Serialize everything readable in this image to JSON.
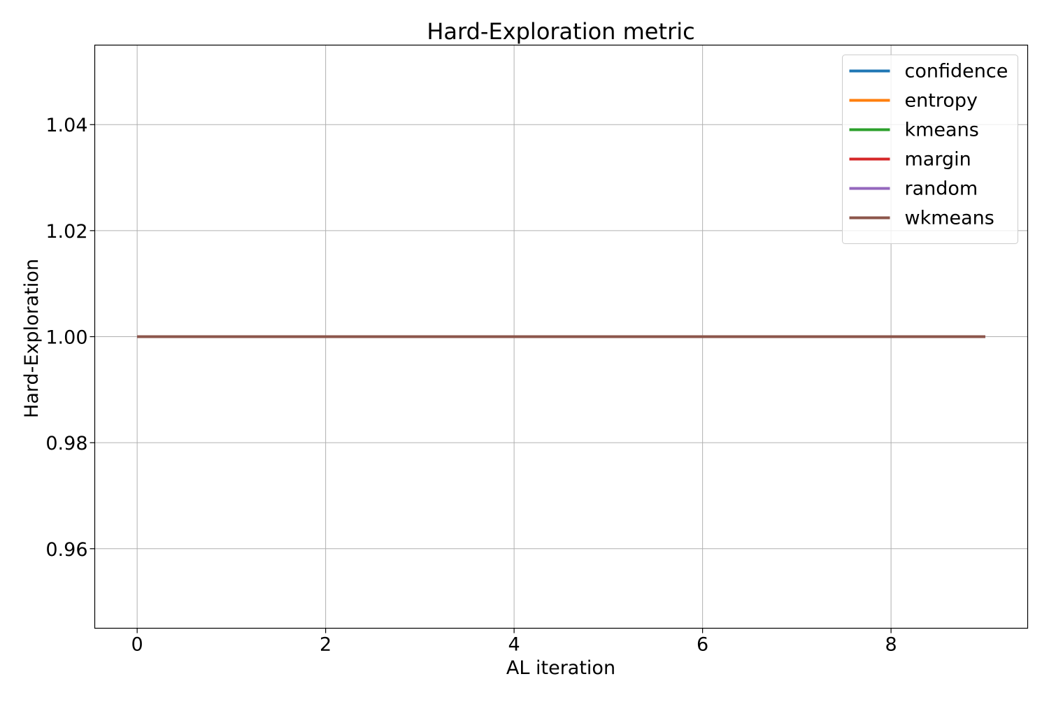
{
  "chart_data": {
    "type": "line",
    "title": "Hard-Exploration metric",
    "xlabel": "AL iteration",
    "ylabel": "Hard-Exploration",
    "xlim": [
      -0.45,
      9.45
    ],
    "ylim": [
      0.945,
      1.055
    ],
    "x_ticks": [
      0,
      2,
      4,
      6,
      8
    ],
    "x_tick_labels": [
      "0",
      "2",
      "4",
      "6",
      "8"
    ],
    "y_ticks": [
      0.96,
      0.98,
      1.0,
      1.02,
      1.04
    ],
    "y_tick_labels": [
      "0.96",
      "0.98",
      "1.00",
      "1.02",
      "1.04"
    ],
    "grid": true,
    "legend_position": "top-right",
    "x": [
      0,
      1,
      2,
      3,
      4,
      5,
      6,
      7,
      8,
      9
    ],
    "series": [
      {
        "name": "confidence",
        "color": "#1f77b4",
        "values": [
          1,
          1,
          1,
          1,
          1,
          1,
          1,
          1,
          1,
          1
        ]
      },
      {
        "name": "entropy",
        "color": "#ff7f0e",
        "values": [
          1,
          1,
          1,
          1,
          1,
          1,
          1,
          1,
          1,
          1
        ]
      },
      {
        "name": "kmeans",
        "color": "#2ca02c",
        "values": [
          1,
          1,
          1,
          1,
          1,
          1,
          1,
          1,
          1,
          1
        ]
      },
      {
        "name": "margin",
        "color": "#d62728",
        "values": [
          1,
          1,
          1,
          1,
          1,
          1,
          1,
          1,
          1,
          1
        ]
      },
      {
        "name": "random",
        "color": "#9467bd",
        "values": [
          1,
          1,
          1,
          1,
          1,
          1,
          1,
          1,
          1,
          1
        ]
      },
      {
        "name": "wkmeans",
        "color": "#8c564b",
        "values": [
          1,
          1,
          1,
          1,
          1,
          1,
          1,
          1,
          1,
          1
        ]
      }
    ]
  }
}
